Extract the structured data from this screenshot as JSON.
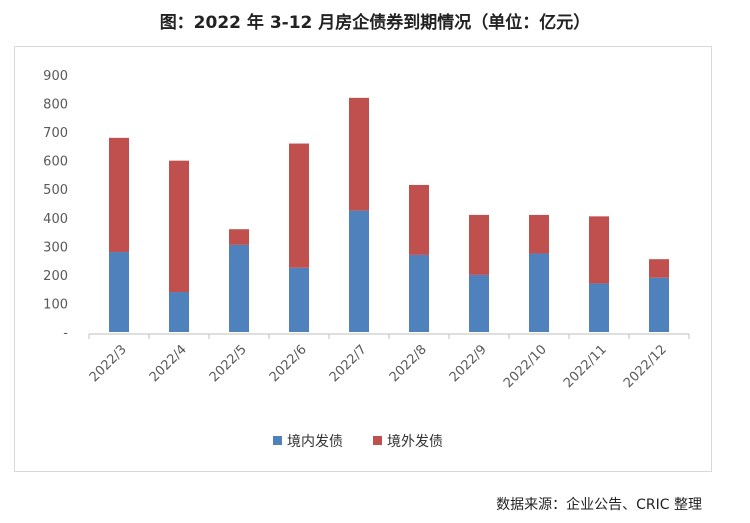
{
  "chart_data": {
    "type": "bar",
    "stacked": true,
    "title": "图：2022 年 3-12 月房企债券到期情况（单位：亿元）",
    "categories": [
      "2022/3",
      "2022/4",
      "2022/5",
      "2022/6",
      "2022/7",
      "2022/8",
      "2022/9",
      "2022/10",
      "2022/11",
      "2022/12"
    ],
    "series": [
      {
        "name": "境内发债",
        "color": "#4f81bd",
        "values": [
          280,
          140,
          305,
          225,
          425,
          270,
          200,
          275,
          170,
          190
        ]
      },
      {
        "name": "境外发债",
        "color": "#c0504d",
        "values": [
          400,
          460,
          55,
          435,
          395,
          245,
          210,
          135,
          235,
          65
        ]
      }
    ],
    "ylim": [
      0,
      900
    ],
    "yticks": [
      "-",
      "100",
      "200",
      "300",
      "400",
      "500",
      "600",
      "700",
      "800",
      "900"
    ],
    "grid": false,
    "legend": "bottom"
  },
  "source": "数据来源：企业公告、CRIC 整理"
}
